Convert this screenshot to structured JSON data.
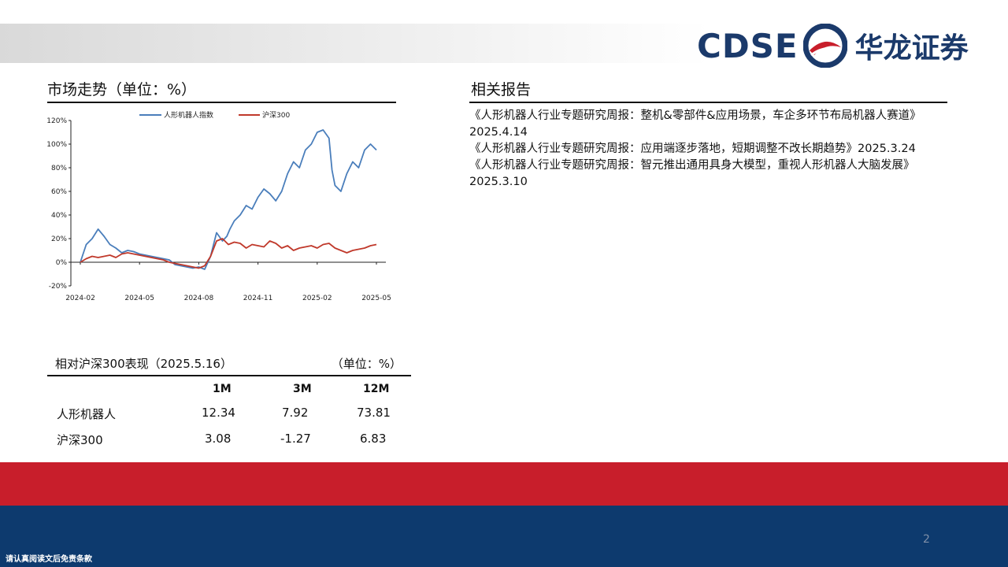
{
  "brand": {
    "en": "CDSE",
    "cn": "华龙证券"
  },
  "market": {
    "title": "市场走势（单位：%）",
    "chart_data": {
      "type": "line",
      "ylim": [
        -20,
        120
      ],
      "y_ticks": [
        "120%",
        "100%",
        "80%",
        "60%",
        "40%",
        "20%",
        "0%",
        "-20%"
      ],
      "x_ticks": [
        "2024-02",
        "2024-05",
        "2024-08",
        "2024-11",
        "2025-02",
        "2025-05"
      ],
      "series": [
        {
          "name": "人形机器人指数",
          "color": "#4a7ebb",
          "t": [
            0,
            0.02,
            0.04,
            0.06,
            0.08,
            0.1,
            0.12,
            0.14,
            0.16,
            0.18,
            0.2,
            0.22,
            0.24,
            0.26,
            0.28,
            0.3,
            0.32,
            0.34,
            0.36,
            0.38,
            0.4,
            0.42,
            0.44,
            0.46,
            0.48,
            0.495,
            0.505,
            0.52,
            0.54,
            0.56,
            0.58,
            0.6,
            0.62,
            0.64,
            0.66,
            0.68,
            0.7,
            0.72,
            0.74,
            0.76,
            0.78,
            0.8,
            0.82,
            0.84,
            0.85,
            0.86,
            0.88,
            0.9,
            0.92,
            0.94,
            0.96,
            0.98,
            1.0
          ],
          "values": [
            0,
            15,
            20,
            28,
            22,
            15,
            12,
            8,
            10,
            9,
            7,
            6,
            5,
            4,
            3,
            2,
            -2,
            -3,
            -4,
            -5,
            -4,
            -6,
            5,
            25,
            18,
            22,
            28,
            35,
            40,
            48,
            45,
            55,
            62,
            58,
            52,
            60,
            75,
            85,
            80,
            95,
            100,
            110,
            112,
            105,
            78,
            65,
            60,
            75,
            85,
            80,
            95,
            100,
            95
          ]
        },
        {
          "name": "沪深300",
          "color": "#c0392b",
          "t": [
            0,
            0.02,
            0.04,
            0.06,
            0.08,
            0.1,
            0.12,
            0.14,
            0.16,
            0.18,
            0.2,
            0.22,
            0.24,
            0.26,
            0.28,
            0.3,
            0.32,
            0.34,
            0.36,
            0.38,
            0.4,
            0.42,
            0.44,
            0.46,
            0.48,
            0.5,
            0.52,
            0.54,
            0.56,
            0.58,
            0.6,
            0.62,
            0.64,
            0.66,
            0.68,
            0.7,
            0.72,
            0.74,
            0.76,
            0.78,
            0.8,
            0.82,
            0.84,
            0.86,
            0.88,
            0.9,
            0.92,
            0.94,
            0.96,
            0.98,
            1.0
          ],
          "values": [
            0,
            3,
            5,
            4,
            5,
            6,
            4,
            7,
            8,
            7,
            6,
            5,
            4,
            3,
            2,
            0,
            -1,
            -2,
            -3,
            -4,
            -5,
            -3,
            5,
            18,
            20,
            15,
            17,
            16,
            12,
            15,
            14,
            13,
            18,
            16,
            12,
            14,
            10,
            12,
            13,
            14,
            12,
            15,
            16,
            12,
            10,
            8,
            10,
            11,
            12,
            14,
            15
          ]
        }
      ]
    }
  },
  "reports": {
    "title": "相关报告",
    "items": [
      "《人形机器人行业专题研究周报：整机&零部件&应用场景，车企多环节布局机器人赛道》2025.4.14",
      "《人形机器人行业专题研究周报：应用端逐步落地，短期调整不改长期趋势》2025.3.24",
      "《人形机器人行业专题研究周报：智元推出通用具身大模型，重视人形机器人大脑发展》2025.3.10"
    ]
  },
  "performance": {
    "caption_left": "相对沪深300表现（2025.5.16）",
    "caption_right": "（单位：%）",
    "columns": [
      "1M",
      "3M",
      "12M"
    ],
    "rows": [
      {
        "label": "人形机器人",
        "values": [
          "12.34",
          "7.92",
          "73.81"
        ]
      },
      {
        "label": "沪深300",
        "values": [
          "3.08",
          "-1.27",
          "6.83"
        ]
      }
    ]
  },
  "footer": {
    "page": "2",
    "disclaimer": "请认真阅读文后免责条款"
  }
}
